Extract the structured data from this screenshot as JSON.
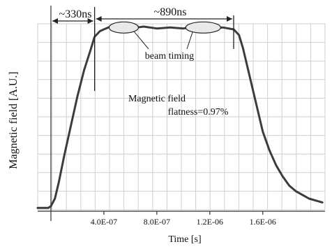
{
  "chart_data": {
    "type": "line",
    "xlabel": "Time [s]",
    "ylabel": "Magnetic field [A.U.]",
    "xlim": [
      -1e-07,
      2.07e-06
    ],
    "ylim": [
      0,
      1.0
    ],
    "x_tick_labels": [
      "4.0E-07",
      "8.0E-07",
      "1.2E-06",
      "1.6E-06"
    ],
    "x_ticks": [
      4e-07,
      8e-07,
      1.2e-06,
      1.6e-06
    ],
    "grid": true,
    "series": [
      {
        "x": [
          -1e-07,
          -2e-08,
          0.0,
          3e-08,
          6e-08,
          1e-07,
          1.5e-07,
          2e-07,
          2.5e-07,
          3e-07,
          3.3e-07,
          3.7e-07,
          4e-07,
          4.5e-07,
          5e-07,
          6e-07,
          7e-07,
          8e-07,
          9e-07,
          1e-06,
          1.1e-06,
          1.2e-06,
          1.3e-06,
          1.38e-06,
          1.42e-06,
          1.45e-06,
          1.48e-06,
          1.52e-06,
          1.56e-06,
          1.6e-06,
          1.65e-06,
          1.7e-06,
          1.75e-06,
          1.8e-06,
          1.85e-06,
          1.9e-06,
          1.95e-06,
          2e-06,
          2.05e-06
        ],
        "y": [
          0.01,
          0.01,
          0.02,
          0.06,
          0.15,
          0.29,
          0.45,
          0.61,
          0.75,
          0.86,
          0.93,
          0.96,
          0.97,
          0.985,
          0.985,
          0.975,
          0.985,
          0.975,
          0.98,
          0.975,
          0.985,
          0.975,
          0.98,
          0.97,
          0.94,
          0.87,
          0.78,
          0.66,
          0.54,
          0.42,
          0.32,
          0.24,
          0.18,
          0.13,
          0.1,
          0.08,
          0.06,
          0.05,
          0.04
        ]
      }
    ],
    "annotations": {
      "rise": "~330ns",
      "flat": "~890ns",
      "beam": "beam timing",
      "flatness_title": "Magnetic field",
      "flatness_value": "flatness=0.97%"
    },
    "dims": {
      "rise_start": 0.0,
      "rise_end": 3.3e-07,
      "flat_start": 3.3e-07,
      "flat_end": 1.38e-06,
      "ellipse1_center": 5.5e-07,
      "ellipse2_center": 1.15e-06
    }
  }
}
